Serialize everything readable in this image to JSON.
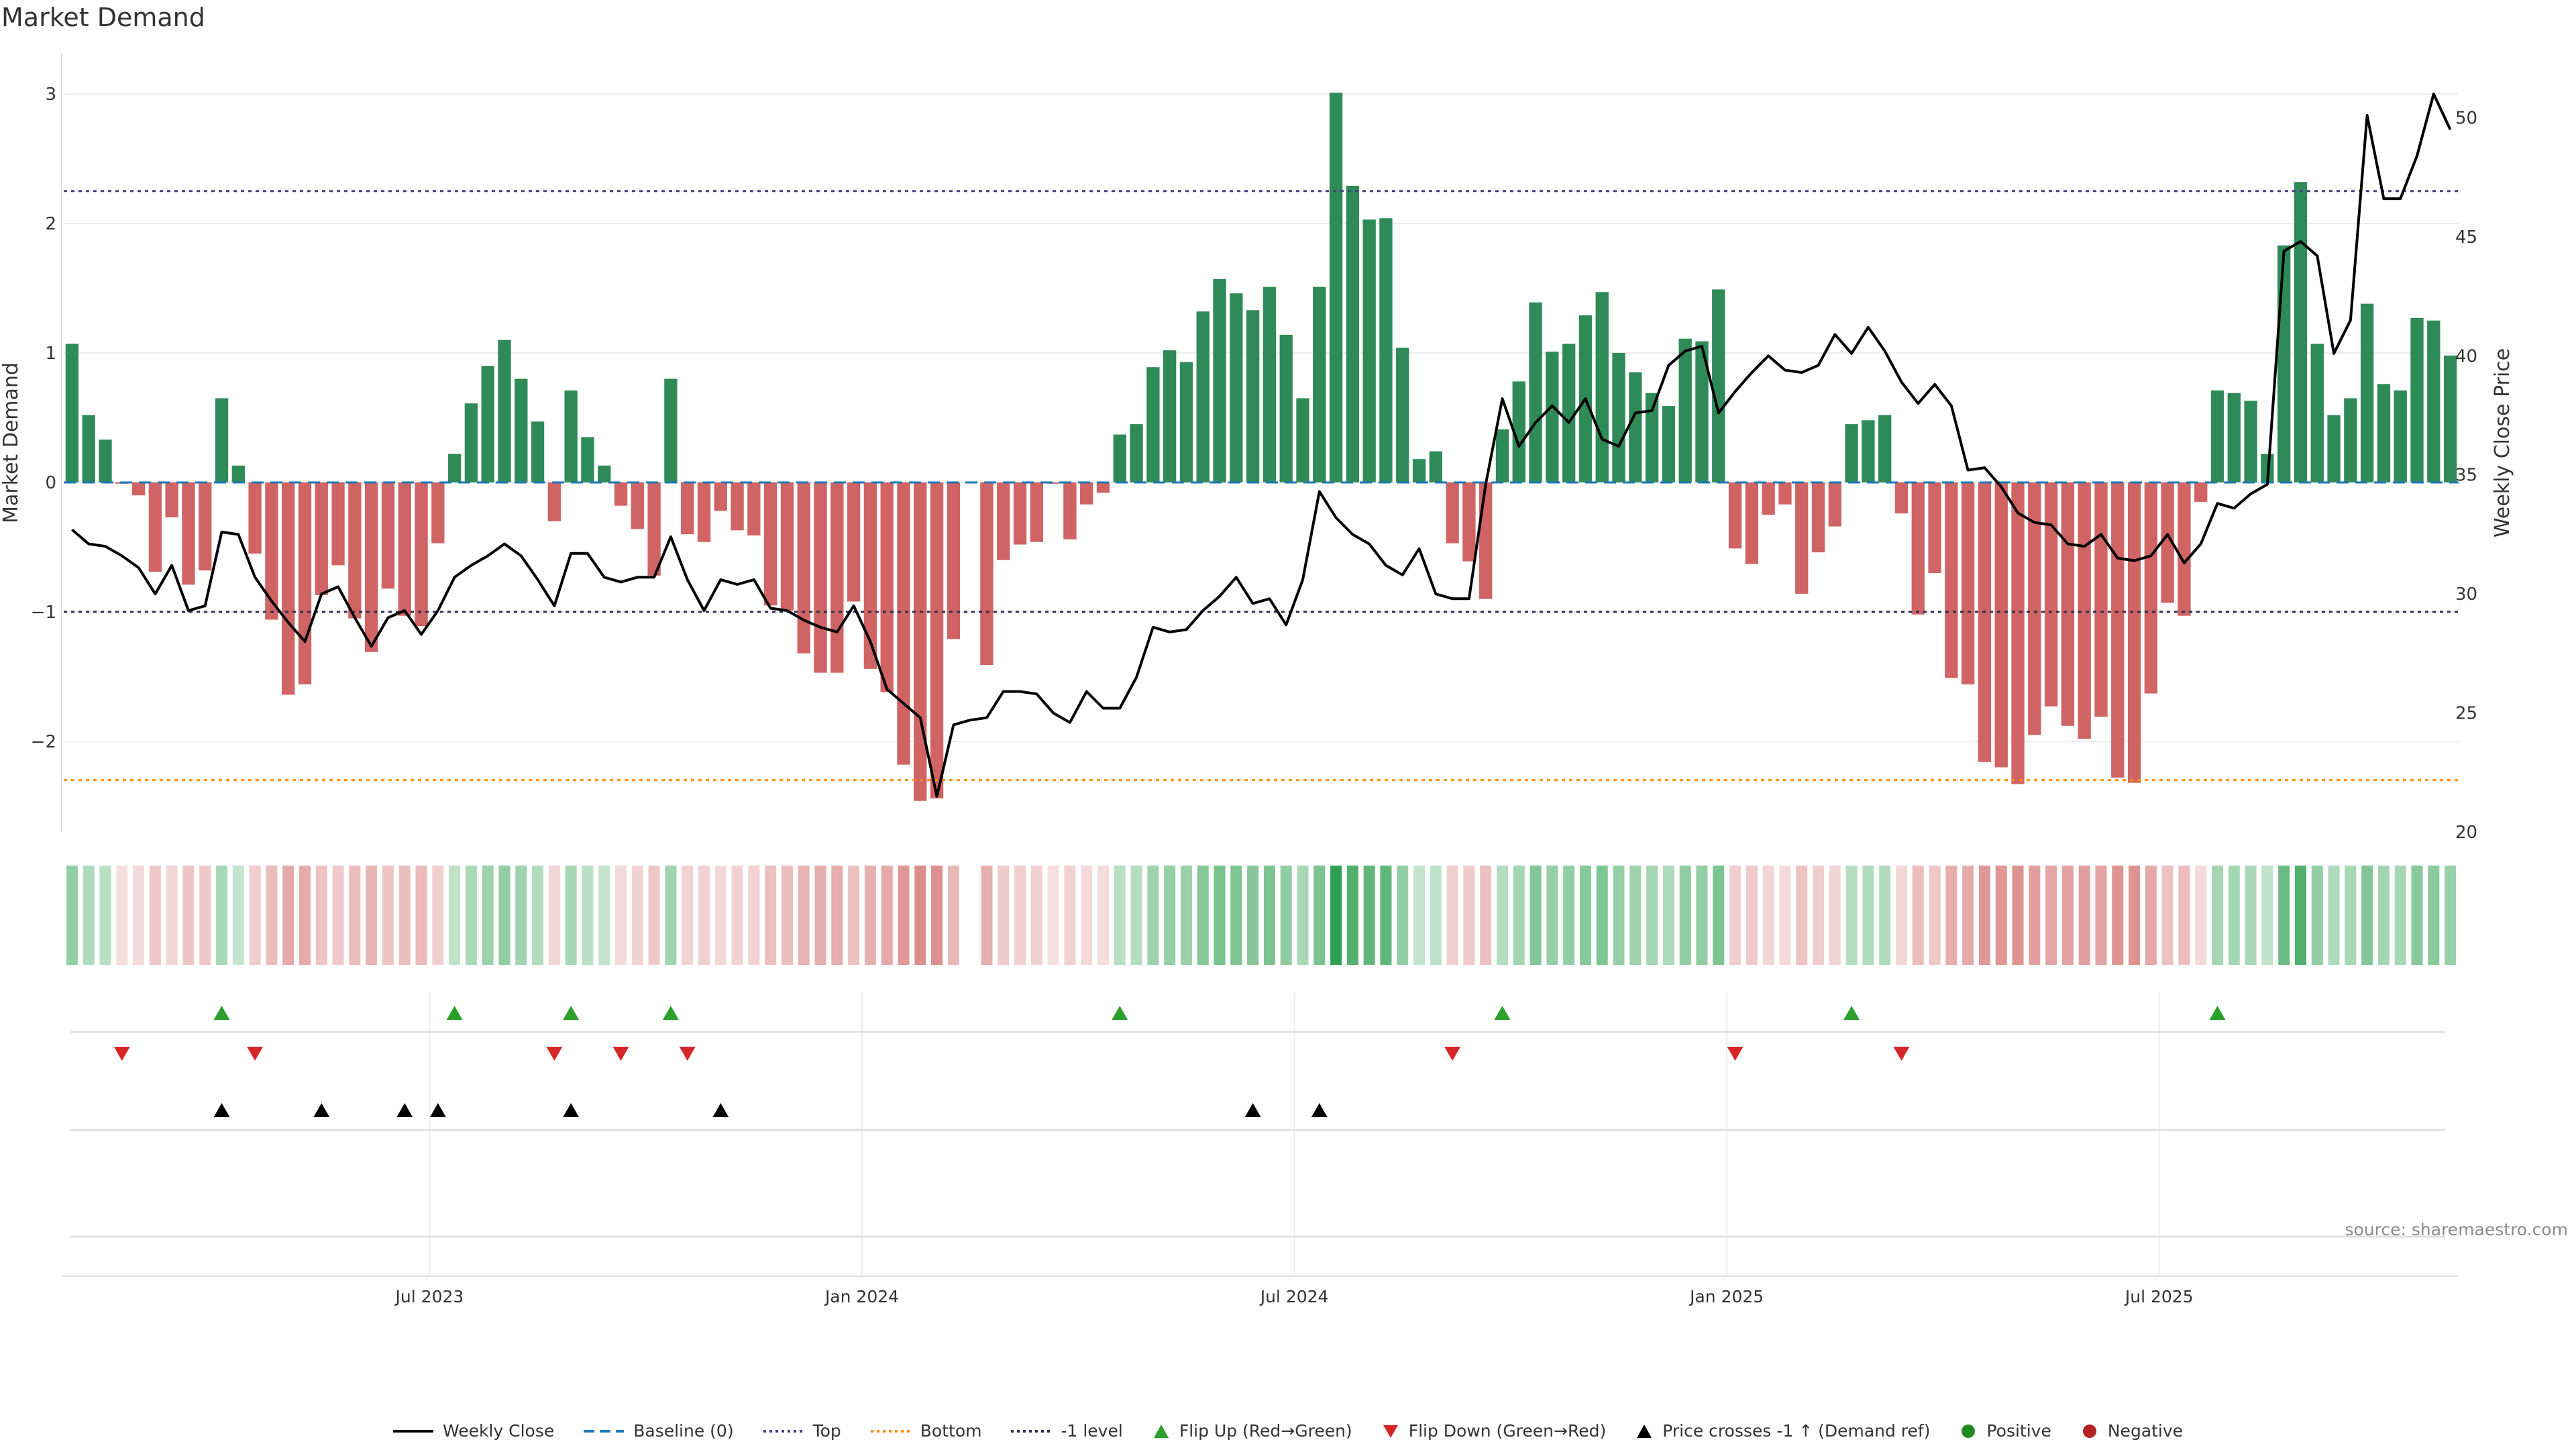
{
  "title": "Market Demand",
  "source": "source: sharemaestro.com",
  "colors": {
    "positive": "#2e8b57",
    "negative": "#cd5c5c",
    "close_line": "#000000",
    "baseline": "#1f77b4",
    "top": "#483d8b",
    "bottom": "#ff8c00",
    "minus_one": "#2f2f4f",
    "flip_up": "#2ca02c",
    "flip_down": "#d62728",
    "price_cross": "#000000",
    "grid": "#ececec"
  },
  "legend": [
    {
      "key": "weekly_close",
      "label": "Weekly Close",
      "icon": "line-solid-icon",
      "color": "#000000"
    },
    {
      "key": "baseline",
      "label": "Baseline (0)",
      "icon": "line-dashed-icon",
      "color": "#1f77b4"
    },
    {
      "key": "top",
      "label": "Top",
      "icon": "line-dotted-icon",
      "color": "#483d8b"
    },
    {
      "key": "bottom",
      "label": "Bottom",
      "icon": "line-dotted-icon",
      "color": "#ff8c00"
    },
    {
      "key": "minus_one",
      "label": "-1 level",
      "icon": "line-dotted-icon",
      "color": "#2f2f4f"
    },
    {
      "key": "flip_up",
      "label": "Flip Up (Red→Green)",
      "icon": "triangle-up-icon",
      "color": "#2ca02c"
    },
    {
      "key": "flip_down",
      "label": "Flip Down (Green→Red)",
      "icon": "triangle-down-icon",
      "color": "#d62728"
    },
    {
      "key": "price_cross",
      "label": "Price crosses -1 ↑ (Demand ref)",
      "icon": "triangle-up-icon",
      "color": "#000000"
    },
    {
      "key": "positive",
      "label": "Positive",
      "icon": "circle-icon",
      "color": "#228b22"
    },
    {
      "key": "negative",
      "label": "Negative",
      "icon": "circle-icon",
      "color": "#b22222"
    }
  ],
  "chart_data": {
    "type": "bar",
    "title": "Market Demand",
    "ylabel": "Market Demand",
    "y2label": "Weekly Close Price",
    "ylim": [
      -2.7,
      3.0
    ],
    "y2lim": [
      20,
      51
    ],
    "yticks": [
      {
        "v": 3,
        "label": "3"
      },
      {
        "v": 2,
        "label": "2"
      },
      {
        "v": 1,
        "label": "1"
      },
      {
        "v": 0,
        "label": "0"
      },
      {
        "v": -1,
        "label": "−1"
      },
      {
        "v": -2,
        "label": "−2"
      }
    ],
    "y2ticks": [
      {
        "v": 50,
        "label": "50"
      },
      {
        "v": 45,
        "label": "45"
      },
      {
        "v": 40,
        "label": "40"
      },
      {
        "v": 35,
        "label": "35"
      },
      {
        "v": 30,
        "label": "30"
      },
      {
        "v": 25,
        "label": "25"
      },
      {
        "v": 20,
        "label": "20"
      }
    ],
    "levels": {
      "baseline": 0,
      "top": 2.25,
      "bottom": -2.3,
      "minus_one": -1.0
    },
    "first_week": "2023-01-20",
    "week_count": 144,
    "xticks": [
      {
        "label": "Jul 2023",
        "week": 22
      },
      {
        "label": "Jan 2024",
        "week": 48
      },
      {
        "label": "Jul 2024",
        "week": 74
      },
      {
        "label": "Jan 2025",
        "week": 100
      },
      {
        "label": "Jul 2025",
        "week": 126
      }
    ],
    "demand": [
      1.07,
      0.52,
      0.33,
      -0.01,
      -0.1,
      -0.69,
      -0.27,
      -0.79,
      -0.68,
      0.65,
      0.13,
      -0.55,
      -1.06,
      -1.64,
      -1.56,
      -0.87,
      -0.64,
      -1.05,
      -1.31,
      -0.82,
      -1.03,
      -1.11,
      -0.47,
      0.22,
      0.61,
      0.9,
      1.1,
      0.8,
      0.47,
      -0.3,
      0.71,
      0.35,
      0.13,
      -0.18,
      -0.36,
      -0.72,
      0.8,
      -0.4,
      -0.46,
      -0.22,
      -0.37,
      -0.41,
      -0.95,
      -0.99,
      -1.32,
      -1.47,
      -1.47,
      -0.92,
      -1.44,
      -1.62,
      -2.18,
      -2.46,
      -2.44,
      -1.21,
      null,
      -1.41,
      -0.6,
      -0.48,
      -0.46,
      -0.01,
      -0.44,
      -0.17,
      -0.08,
      0.37,
      0.45,
      0.89,
      1.02,
      0.93,
      1.32,
      1.57,
      1.46,
      1.33,
      1.51,
      1.14,
      0.65,
      1.51,
      3.01,
      2.29,
      2.03,
      2.04,
      1.04,
      0.18,
      0.24,
      -0.47,
      -0.61,
      -0.9,
      0.41,
      0.78,
      1.39,
      1.01,
      1.07,
      1.29,
      1.47,
      1.0,
      0.85,
      0.69,
      0.59,
      1.11,
      1.09,
      1.49,
      -0.51,
      -0.63,
      -0.25,
      -0.17,
      -0.86,
      -0.54,
      -0.34,
      0.45,
      0.48,
      0.52,
      -0.24,
      -1.02,
      -0.7,
      -1.51,
      -1.56,
      -2.16,
      -2.2,
      -2.33,
      -1.95,
      -1.73,
      -1.88,
      -1.98,
      -1.81,
      -2.28,
      -2.32,
      -1.63,
      -0.93,
      -1.03,
      -0.15,
      0.71,
      0.69,
      0.63,
      0.22,
      1.83,
      2.32,
      1.07,
      0.52,
      0.65,
      1.38,
      0.76,
      0.71,
      1.27,
      1.25,
      0.98
    ],
    "close": [
      32.7,
      32.1,
      32.0,
      31.6,
      31.1,
      30.0,
      31.2,
      29.3,
      29.5,
      32.6,
      32.5,
      30.7,
      29.7,
      28.8,
      28.0,
      30.0,
      30.3,
      29.0,
      27.8,
      29.0,
      29.3,
      28.3,
      29.3,
      30.7,
      31.2,
      31.6,
      32.1,
      31.6,
      30.6,
      29.5,
      31.7,
      31.7,
      30.7,
      30.5,
      30.7,
      30.7,
      32.4,
      30.6,
      29.3,
      30.6,
      30.4,
      30.6,
      29.4,
      29.3,
      28.9,
      28.6,
      28.4,
      29.5,
      28.0,
      26.0,
      25.4,
      24.8,
      21.5,
      24.5,
      24.7,
      24.8,
      25.9,
      25.9,
      25.8,
      25.0,
      24.6,
      25.9,
      25.2,
      25.2,
      26.5,
      28.6,
      28.4,
      28.5,
      29.3,
      29.9,
      30.7,
      29.6,
      29.8,
      28.7,
      30.6,
      34.3,
      33.2,
      32.5,
      32.1,
      31.2,
      30.8,
      31.9,
      30.0,
      29.8,
      29.8,
      34.6,
      38.2,
      36.2,
      37.2,
      37.9,
      37.2,
      38.2,
      36.5,
      36.2,
      37.6,
      37.7,
      39.6,
      40.2,
      40.4,
      37.6,
      38.5,
      39.3,
      40.0,
      39.4,
      39.3,
      39.6,
      40.9,
      40.1,
      41.2,
      40.2,
      38.9,
      38.0,
      38.8,
      37.9,
      35.2,
      35.3,
      34.5,
      33.4,
      33.0,
      32.9,
      32.1,
      32.0,
      32.5,
      31.5,
      31.4,
      31.6,
      32.5,
      31.3,
      32.1,
      33.8,
      33.6,
      34.2,
      34.6,
      44.4,
      44.8,
      44.2,
      40.1,
      41.5,
      50.1,
      46.6,
      46.6,
      48.4,
      51.0,
      49.5
    ]
  },
  "heat_strip_count": 144,
  "flip_up_weeks": [
    9,
    23,
    30,
    36,
    63,
    86,
    107,
    129
  ],
  "flip_down_weeks": [
    3,
    11,
    29,
    33,
    37,
    83,
    100,
    110
  ],
  "price_cross_weeks": [
    9,
    15,
    20,
    22,
    30,
    39,
    71,
    75
  ]
}
